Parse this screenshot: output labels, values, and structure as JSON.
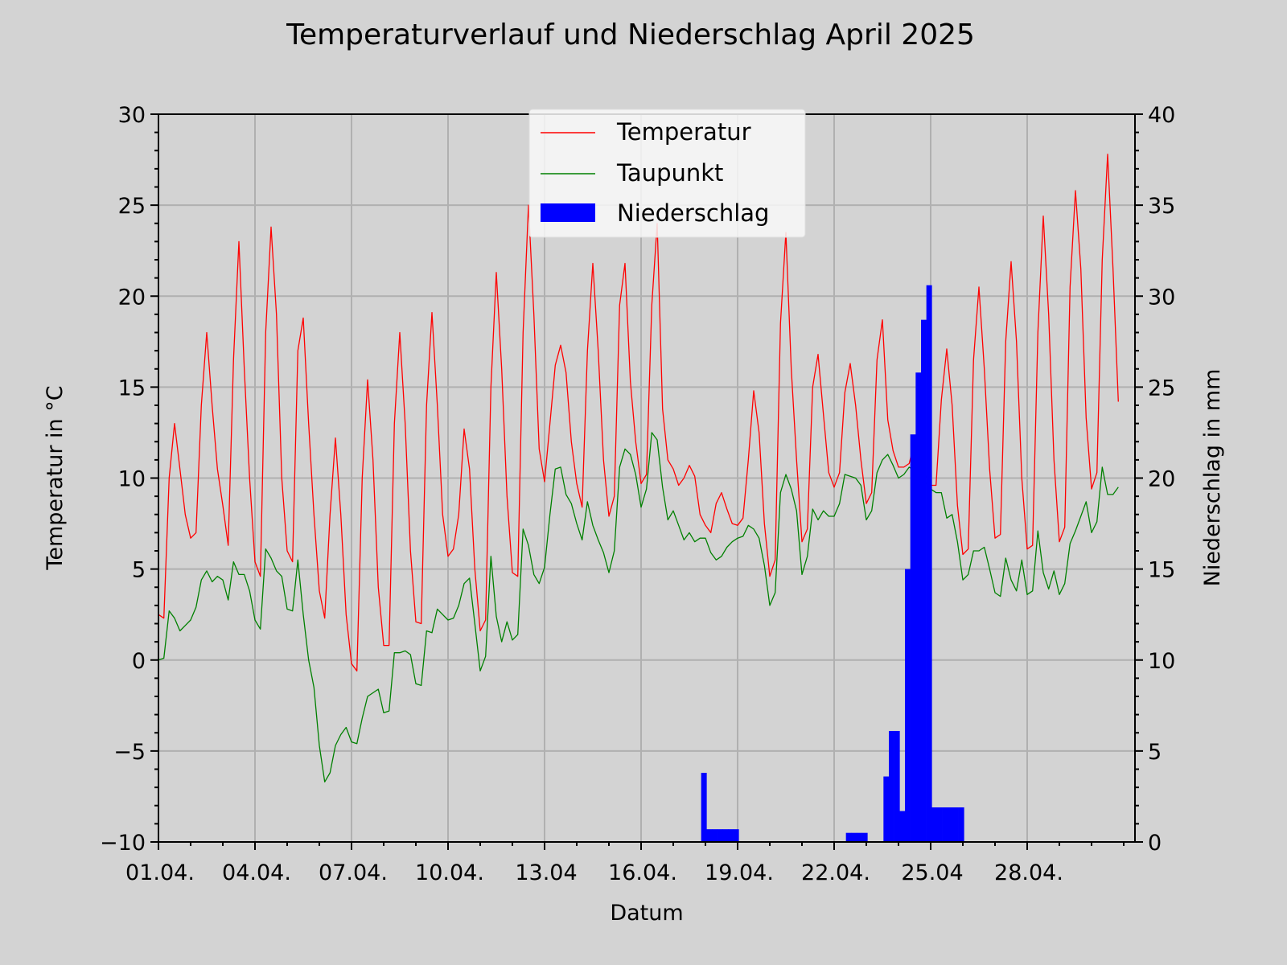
{
  "chart_data": {
    "type": "line+bar",
    "title": "Temperaturverlauf und Niederschlag April 2025",
    "xlabel": "Datum",
    "ylabel_left": "Temperatur in °C",
    "ylabel_right": "Niederschlag in mm",
    "x_unit": "days since 01.04.2025 00:00",
    "x_step_hours": 4,
    "xlim": [
      0,
      30.35
    ],
    "ylim_left": [
      -10,
      30
    ],
    "ylim_right": [
      0,
      40
    ],
    "grid": true,
    "legend_position": "top-center",
    "x_ticks": [
      {
        "day": 0,
        "label": "01.04."
      },
      {
        "day": 3,
        "label": "04.04."
      },
      {
        "day": 6,
        "label": "07.04."
      },
      {
        "day": 9,
        "label": "10.04."
      },
      {
        "day": 12,
        "label": "13.04"
      },
      {
        "day": 15,
        "label": "16.04."
      },
      {
        "day": 18,
        "label": "19.04."
      },
      {
        "day": 21,
        "label": "22.04."
      },
      {
        "day": 24,
        "label": "25.04"
      },
      {
        "day": 27,
        "label": "28.04."
      }
    ],
    "y_ticks_left": [
      "30",
      "25",
      "20",
      "15",
      "10",
      "5",
      "0",
      "−5",
      "−10"
    ],
    "y_ticks_left_values": [
      30,
      25,
      20,
      15,
      10,
      5,
      0,
      -5,
      -10
    ],
    "y_ticks_right": [
      "40",
      "35",
      "30",
      "25",
      "20",
      "15",
      "10",
      "5",
      "0"
    ],
    "y_ticks_right_values": [
      40,
      35,
      30,
      25,
      20,
      15,
      10,
      5,
      0
    ],
    "colors": {
      "temperature": "#ff0000",
      "dewpoint": "#008000",
      "precipitation": "#0000ff",
      "grid": "#b0b0b0",
      "background": "#d3d3d3"
    },
    "series": [
      {
        "name": "Temperatur",
        "type": "line",
        "axis": "left",
        "values": [
          2.5,
          2.3,
          10,
          13,
          10.5,
          8,
          6.7,
          7,
          14,
          18,
          14,
          10.5,
          8.5,
          6.3,
          16.5,
          23,
          16,
          10,
          5.4,
          4.6,
          18,
          23.8,
          19,
          10,
          6,
          5.4,
          17,
          18.8,
          13,
          8,
          3.8,
          2.3,
          8,
          12.2,
          8,
          2.5,
          -0.2,
          -0.6,
          10,
          15.4,
          11,
          4,
          0.8,
          0.8,
          13,
          18,
          13,
          6,
          2.1,
          2,
          14,
          19.1,
          14,
          8,
          5.7,
          6.1,
          8,
          12.7,
          10.5,
          5,
          1.6,
          2.2,
          15,
          21.3,
          16,
          9,
          4.8,
          4.6,
          18,
          25,
          19,
          11.6,
          9.8,
          13,
          16.2,
          17.3,
          15.8,
          12,
          9.7,
          8.4,
          17,
          21.8,
          17,
          11,
          7.9,
          9,
          19.5,
          21.8,
          15.3,
          12,
          9.7,
          10.2,
          19.5,
          24,
          13.8,
          11,
          10.5,
          9.6,
          10,
          10.7,
          10.1,
          8,
          7.4,
          7,
          8.6,
          9.2,
          8.3,
          7.5,
          7.4,
          7.8,
          11,
          14.8,
          12.5,
          7.5,
          4.6,
          5.5,
          18.5,
          23.5,
          16,
          11,
          6.5,
          7.2,
          15,
          16.8,
          13.5,
          10.3,
          9.5,
          10.3,
          14.7,
          16.3,
          14,
          11,
          8.6,
          9.2,
          16.5,
          18.7,
          13.2,
          11.5,
          10.6,
          10.6,
          10.8,
          12,
          11,
          10.2,
          9.6,
          9.6,
          14.3,
          17.1,
          14,
          8.5,
          5.8,
          6.1,
          16.5,
          20.5,
          16,
          10.5,
          6.7,
          6.9,
          17.5,
          21.9,
          17.5,
          10,
          6.1,
          6.3,
          18,
          24.4,
          19,
          11,
          6.5,
          7.3,
          20.5,
          25.8,
          21.5,
          13.3,
          9.4,
          10.3,
          22,
          27.8,
          21.5,
          14.2
        ]
      },
      {
        "name": "Taupunkt",
        "type": "line",
        "axis": "left",
        "values": [
          0,
          0.1,
          2.7,
          2.3,
          1.6,
          1.9,
          2.2,
          2.9,
          4.4,
          4.9,
          4.3,
          4.6,
          4.4,
          3.3,
          5.4,
          4.7,
          4.7,
          3.8,
          2.2,
          1.7,
          6.1,
          5.6,
          4.9,
          4.6,
          2.8,
          2.7,
          5.5,
          2.5,
          0,
          -1.5,
          -4.7,
          -6.7,
          -6.2,
          -4.7,
          -4.1,
          -3.7,
          -4.5,
          -4.6,
          -3.2,
          -2,
          -1.8,
          -1.6,
          -2.9,
          -2.8,
          0.4,
          0.4,
          0.5,
          0.3,
          -1.3,
          -1.4,
          1.6,
          1.5,
          2.8,
          2.5,
          2.2,
          2.3,
          3,
          4.2,
          4.5,
          2,
          -0.6,
          0.2,
          5.7,
          2.4,
          1,
          2.1,
          1.1,
          1.4,
          7.2,
          6.3,
          4.7,
          4.2,
          5.1,
          8,
          10.5,
          10.6,
          9.1,
          8.6,
          7.5,
          6.6,
          8.7,
          7.4,
          6.6,
          5.9,
          4.8,
          6,
          10.6,
          11.6,
          11.3,
          10.2,
          8.4,
          9.4,
          12.5,
          12.1,
          9.5,
          7.7,
          8.2,
          7.4,
          6.6,
          7,
          6.5,
          6.7,
          6.7,
          5.9,
          5.5,
          5.7,
          6.2,
          6.5,
          6.7,
          6.8,
          7.4,
          7.2,
          6.7,
          5.2,
          3,
          3.7,
          9.2,
          10.2,
          9.4,
          8.2,
          4.7,
          5.7,
          8.3,
          7.7,
          8.2,
          7.9,
          7.9,
          8.6,
          10.2,
          10.1,
          10,
          9.6,
          7.7,
          8.2,
          10.3,
          11,
          11.3,
          10.7,
          10,
          10.2,
          10.6,
          10.4,
          10,
          9.8,
          9.4,
          9.2,
          9.2,
          7.8,
          8,
          6.5,
          4.4,
          4.7,
          6,
          6,
          6.2,
          5,
          3.7,
          3.5,
          5.6,
          4.4,
          3.8,
          5.5,
          3.6,
          3.8,
          7.1,
          4.8,
          3.9,
          4.9,
          3.6,
          4.2,
          6.4,
          7.1,
          7.9,
          8.7,
          7,
          7.6,
          10.6,
          9.1,
          9.1,
          9.5
        ]
      },
      {
        "name": "Niederschlag",
        "type": "bar",
        "axis": "right",
        "points": [
          {
            "step": 101,
            "mm": 3.8
          },
          {
            "step": 102,
            "mm": 0.7
          },
          {
            "step": 103,
            "mm": 0.7
          },
          {
            "step": 104,
            "mm": 0.7
          },
          {
            "step": 105,
            "mm": 0.7
          },
          {
            "step": 106,
            "mm": 0.7
          },
          {
            "step": 107,
            "mm": 0.7
          },
          {
            "step": 128,
            "mm": 0.5
          },
          {
            "step": 129,
            "mm": 0.5
          },
          {
            "step": 130,
            "mm": 0.5
          },
          {
            "step": 131,
            "mm": 0.5
          },
          {
            "step": 135,
            "mm": 3.6
          },
          {
            "step": 136,
            "mm": 6.1
          },
          {
            "step": 137,
            "mm": 6.1
          },
          {
            "step": 138,
            "mm": 1.7
          },
          {
            "step": 139,
            "mm": 15.0
          },
          {
            "step": 140,
            "mm": 22.4
          },
          {
            "step": 141,
            "mm": 25.8
          },
          {
            "step": 142,
            "mm": 28.7
          },
          {
            "step": 143,
            "mm": 30.6
          },
          {
            "step": 144,
            "mm": 1.9
          },
          {
            "step": 145,
            "mm": 1.9
          },
          {
            "step": 146,
            "mm": 1.9
          },
          {
            "step": 147,
            "mm": 1.9
          },
          {
            "step": 148,
            "mm": 1.9
          },
          {
            "step": 149,
            "mm": 1.9
          }
        ]
      }
    ]
  }
}
